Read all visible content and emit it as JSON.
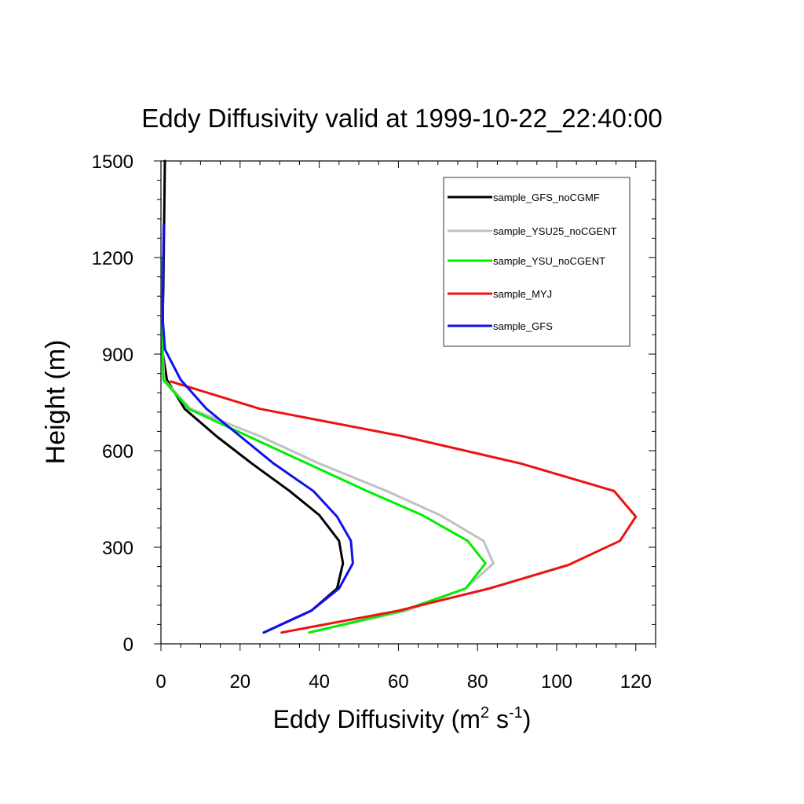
{
  "chart_data": {
    "type": "line",
    "title": "Eddy Diffusivity valid at 1999-10-22_22:40:00",
    "xlabel": "Eddy Diffusivity (m",
    "xlabel_sup1": "2",
    "xlabel_mid": " s",
    "xlabel_sup2": "-1",
    "xlabel_end": ")",
    "ylabel": "Height (m)",
    "xlim": [
      0,
      125
    ],
    "ylim": [
      0,
      1500
    ],
    "xticks": [
      0,
      20,
      40,
      60,
      80,
      100,
      120
    ],
    "yticks": [
      0,
      300,
      600,
      900,
      1200,
      1500
    ],
    "grid": false,
    "legend_position": "top-right",
    "series": [
      {
        "name": "sample_GFS_noCGMF",
        "color": "#000000",
        "x": [
          26,
          38,
          44.5,
          46,
          45,
          40,
          32.5,
          23,
          14,
          6,
          1.5,
          0.5,
          0.4,
          0.6,
          0.7,
          0.8,
          0.9,
          1.0
        ],
        "y": [
          35,
          103,
          172,
          250,
          320,
          400,
          475,
          560,
          645,
          730,
          820,
          900,
          1000,
          1100,
          1200,
          1300,
          1400,
          1500
        ]
      },
      {
        "name": "sample_YSU25_noCGENT",
        "color": "#c0c0c0",
        "x": [
          37.5,
          62,
          77,
          84,
          81.5,
          70.5,
          57,
          40,
          25,
          7.5,
          0.8,
          0.5,
          0.5,
          0.5
        ],
        "y": [
          35,
          103,
          172,
          250,
          320,
          400,
          475,
          560,
          645,
          730,
          820,
          900,
          1000,
          1200
        ]
      },
      {
        "name": "sample_YSU_noCGENT",
        "color": "#00ee00",
        "x": [
          37.5,
          61,
          77,
          82,
          77.5,
          66,
          52,
          37,
          22,
          7,
          0.6,
          0.4,
          0.4,
          0.4
        ],
        "y": [
          35,
          103,
          172,
          250,
          320,
          400,
          475,
          560,
          645,
          730,
          820,
          900,
          1000,
          1200
        ]
      },
      {
        "name": "sample_MYJ",
        "color": "#ee1111",
        "x": [
          30.5,
          60,
          83,
          103,
          116,
          120,
          114.5,
          91,
          61,
          25,
          2.5
        ],
        "y": [
          35,
          103,
          172,
          245,
          320,
          395,
          475,
          560,
          645,
          730,
          815
        ]
      },
      {
        "name": "sample_GFS",
        "color": "#1111ee",
        "x": [
          26,
          38,
          45,
          48.5,
          48,
          44.5,
          38.5,
          28.5,
          20,
          11.5,
          5,
          1,
          0.5,
          0.5,
          0.6,
          0.7
        ],
        "y": [
          35,
          103,
          172,
          250,
          320,
          395,
          475,
          560,
          645,
          730,
          820,
          915,
          1000,
          1100,
          1200,
          1300
        ]
      }
    ]
  }
}
